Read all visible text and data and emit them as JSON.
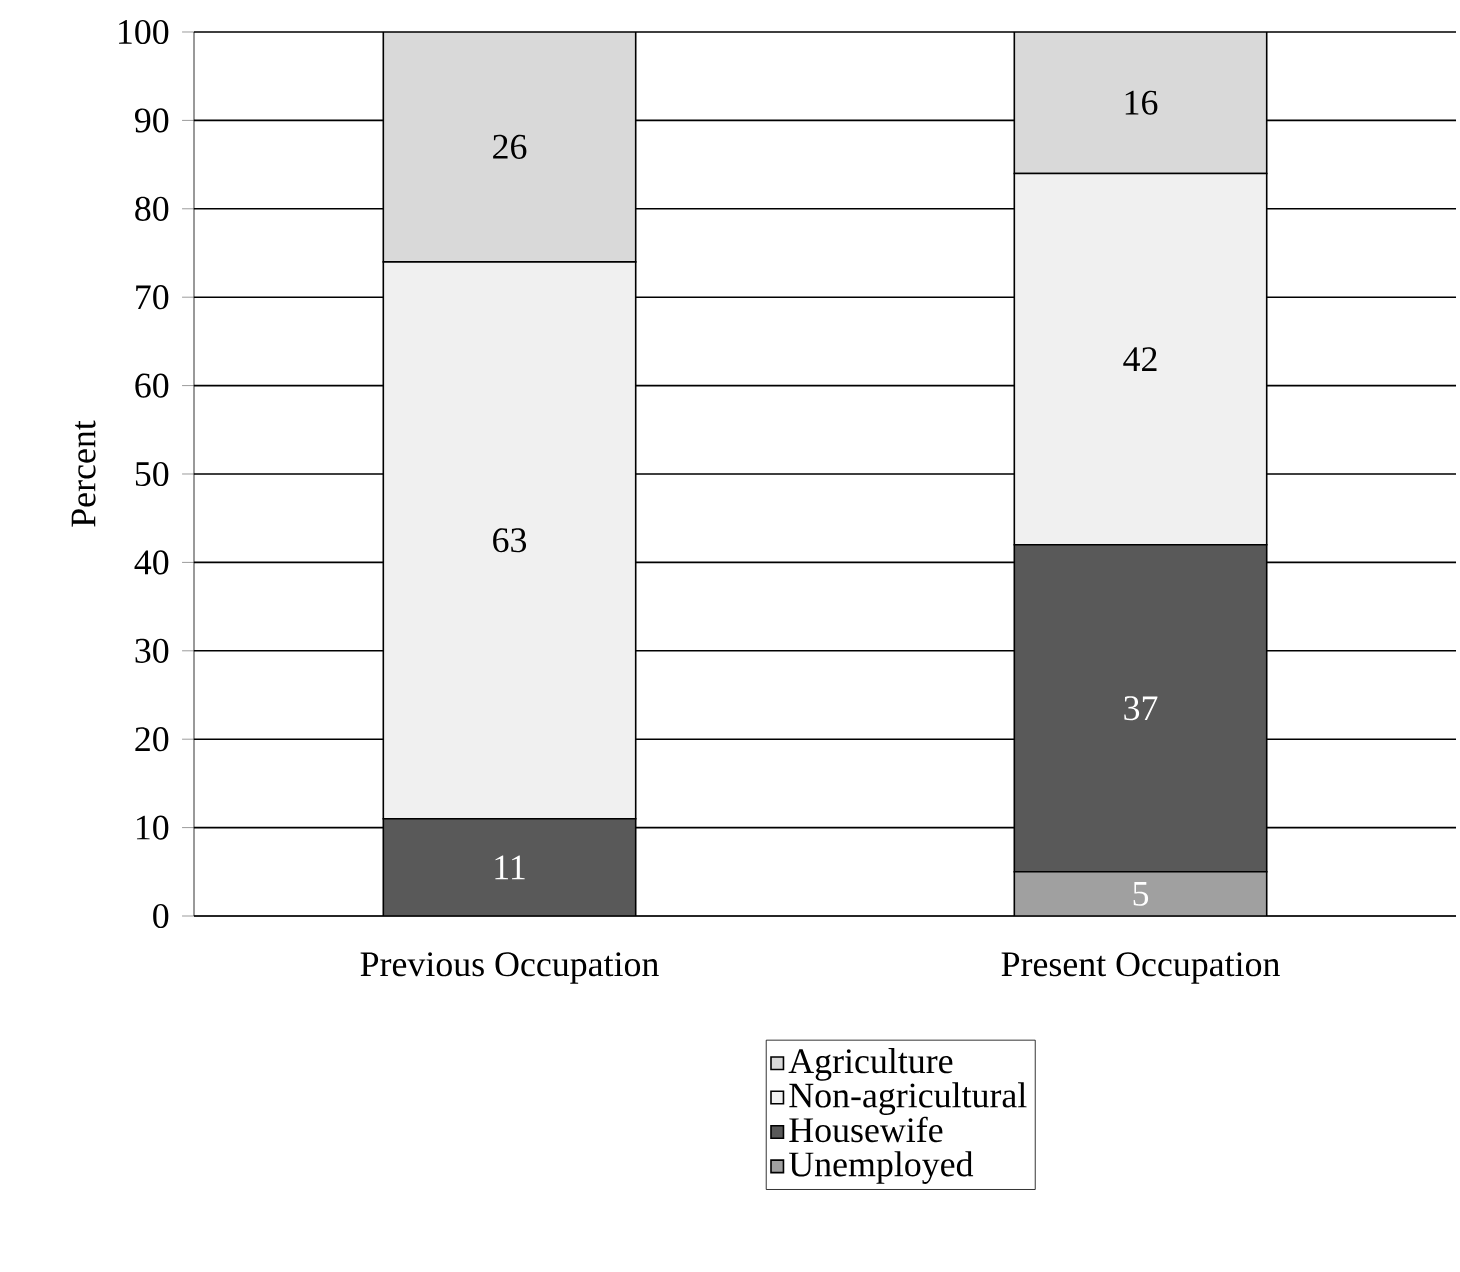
{
  "chart_data": {
    "type": "bar",
    "stacked": true,
    "ylabel": "Percent",
    "categories": [
      "Previous Occupation",
      "Present Occupation"
    ],
    "series": [
      {
        "name": "Unemployed",
        "color": "#a0a0a0",
        "values": [
          0,
          5
        ],
        "value_labels": [
          null,
          "5"
        ]
      },
      {
        "name": "Housewife",
        "color": "#595959",
        "values": [
          11,
          37
        ],
        "value_labels": [
          "11",
          "37"
        ]
      },
      {
        "name": "Non-agricultural",
        "color": "#f0f0f0",
        "values": [
          63,
          42
        ],
        "value_labels": [
          "63",
          "42"
        ]
      },
      {
        "name": "Agriculture",
        "color": "#d9d9d9",
        "values": [
          26,
          16
        ],
        "value_labels": [
          "26",
          "16"
        ]
      }
    ],
    "ylim": [
      0,
      100
    ],
    "yticks": [
      0,
      10,
      20,
      30,
      40,
      50,
      60,
      70,
      80,
      90,
      100
    ],
    "grid": "y",
    "legend": "bottom"
  }
}
